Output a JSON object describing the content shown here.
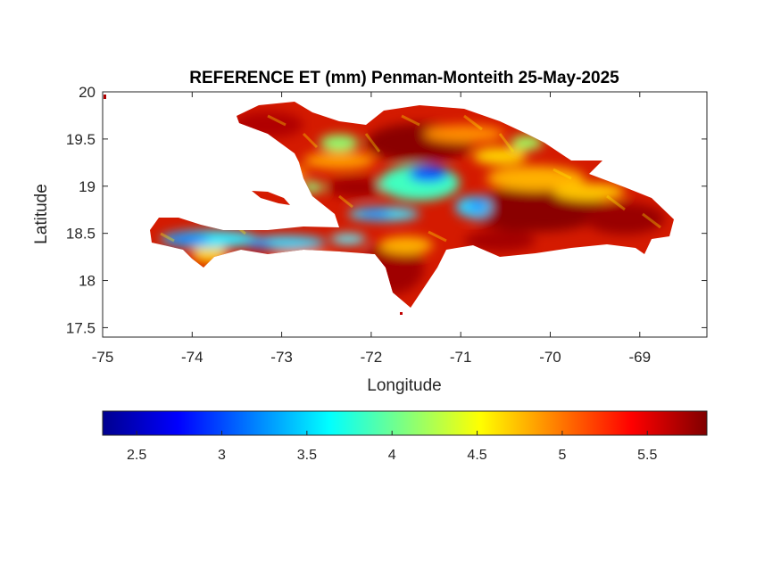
{
  "figure": {
    "title": "REFERENCE ET (mm) Penman-Monteith 25-May-2025",
    "xlabel": "Longitude",
    "ylabel": "Latitude"
  },
  "map": {
    "region": "Hispaniola",
    "variable": "Reference evapotranspiration",
    "units": "mm",
    "x_range": [
      -75,
      -68.25
    ],
    "y_range": [
      17.4,
      20
    ],
    "x_ticks": [
      -75,
      -74,
      -73,
      -72,
      -71,
      -70,
      -69
    ],
    "y_ticks": [
      17.5,
      18,
      18.5,
      19,
      19.5,
      20
    ],
    "x_tick_labels": [
      "-75",
      "-74",
      "-73",
      "-72",
      "-71",
      "-70",
      "-69"
    ],
    "y_tick_labels": [
      "17.5",
      "18",
      "18.5",
      "19",
      "19.5",
      "20"
    ],
    "colormap": "jet",
    "low_et_zones_lonlat": [
      {
        "lon": -71.35,
        "lat": 19.15,
        "level": "low"
      },
      {
        "lon": -71.9,
        "lat": 18.7,
        "level": "low"
      },
      {
        "lon": -73.8,
        "lat": 18.45,
        "level": "low"
      },
      {
        "lon": -72.9,
        "lat": 18.4,
        "level": "low"
      },
      {
        "lon": -70.9,
        "lat": 18.8,
        "level": "low"
      }
    ]
  },
  "colorbar": {
    "range": [
      2.3,
      5.85
    ],
    "ticks": [
      2.5,
      3,
      3.5,
      4,
      4.5,
      5,
      5.5
    ],
    "tick_labels": [
      "2.5",
      "3",
      "3.5",
      "4",
      "4.5",
      "5",
      "5.5"
    ],
    "colors": [
      "#00008f",
      "#0000ff",
      "#00ffff",
      "#ffff00",
      "#ff0000",
      "#800000"
    ]
  }
}
